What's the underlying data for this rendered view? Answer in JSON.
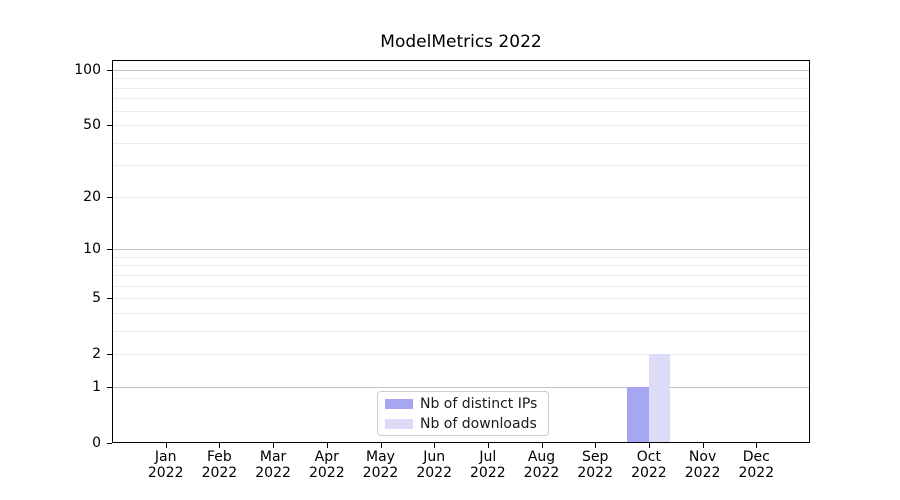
{
  "chart_data": {
    "type": "bar",
    "title": "ModelMetrics 2022",
    "categories": [
      "Jan 2022",
      "Feb 2022",
      "Mar 2022",
      "Apr 2022",
      "May 2022",
      "Jun 2022",
      "Jul 2022",
      "Aug 2022",
      "Sep 2022",
      "Oct 2022",
      "Nov 2022",
      "Dec 2022"
    ],
    "series": [
      {
        "name": "Nb of distinct IPs",
        "color": "#a6a6f2",
        "values": [
          0,
          0,
          0,
          0,
          0,
          0,
          0,
          0,
          0,
          1,
          0,
          0
        ]
      },
      {
        "name": "Nb of downloads",
        "color": "#dcdcf8",
        "values": [
          0,
          0,
          0,
          0,
          0,
          0,
          0,
          0,
          0,
          2,
          0,
          0
        ]
      }
    ],
    "yscale": "log1p",
    "ylim": [
      0,
      113
    ],
    "yticks": [
      0,
      1,
      2,
      5,
      10,
      20,
      50,
      100
    ],
    "grid": "horizontal",
    "grid_major": [
      1,
      10,
      100
    ],
    "grid_minor": [
      2,
      3,
      4,
      5,
      6,
      7,
      8,
      9,
      20,
      30,
      40,
      50,
      60,
      70,
      80,
      90
    ],
    "legend_position": "lower center",
    "colors": {
      "bar_distinct_ips": "#a6a6f2",
      "bar_downloads": "#dcdcf8",
      "grid_major": "#c2c2c2",
      "grid_minor": "#ebebeb",
      "axis": "#000000",
      "legend_border": "#cccccc",
      "background": "#ffffff"
    }
  }
}
